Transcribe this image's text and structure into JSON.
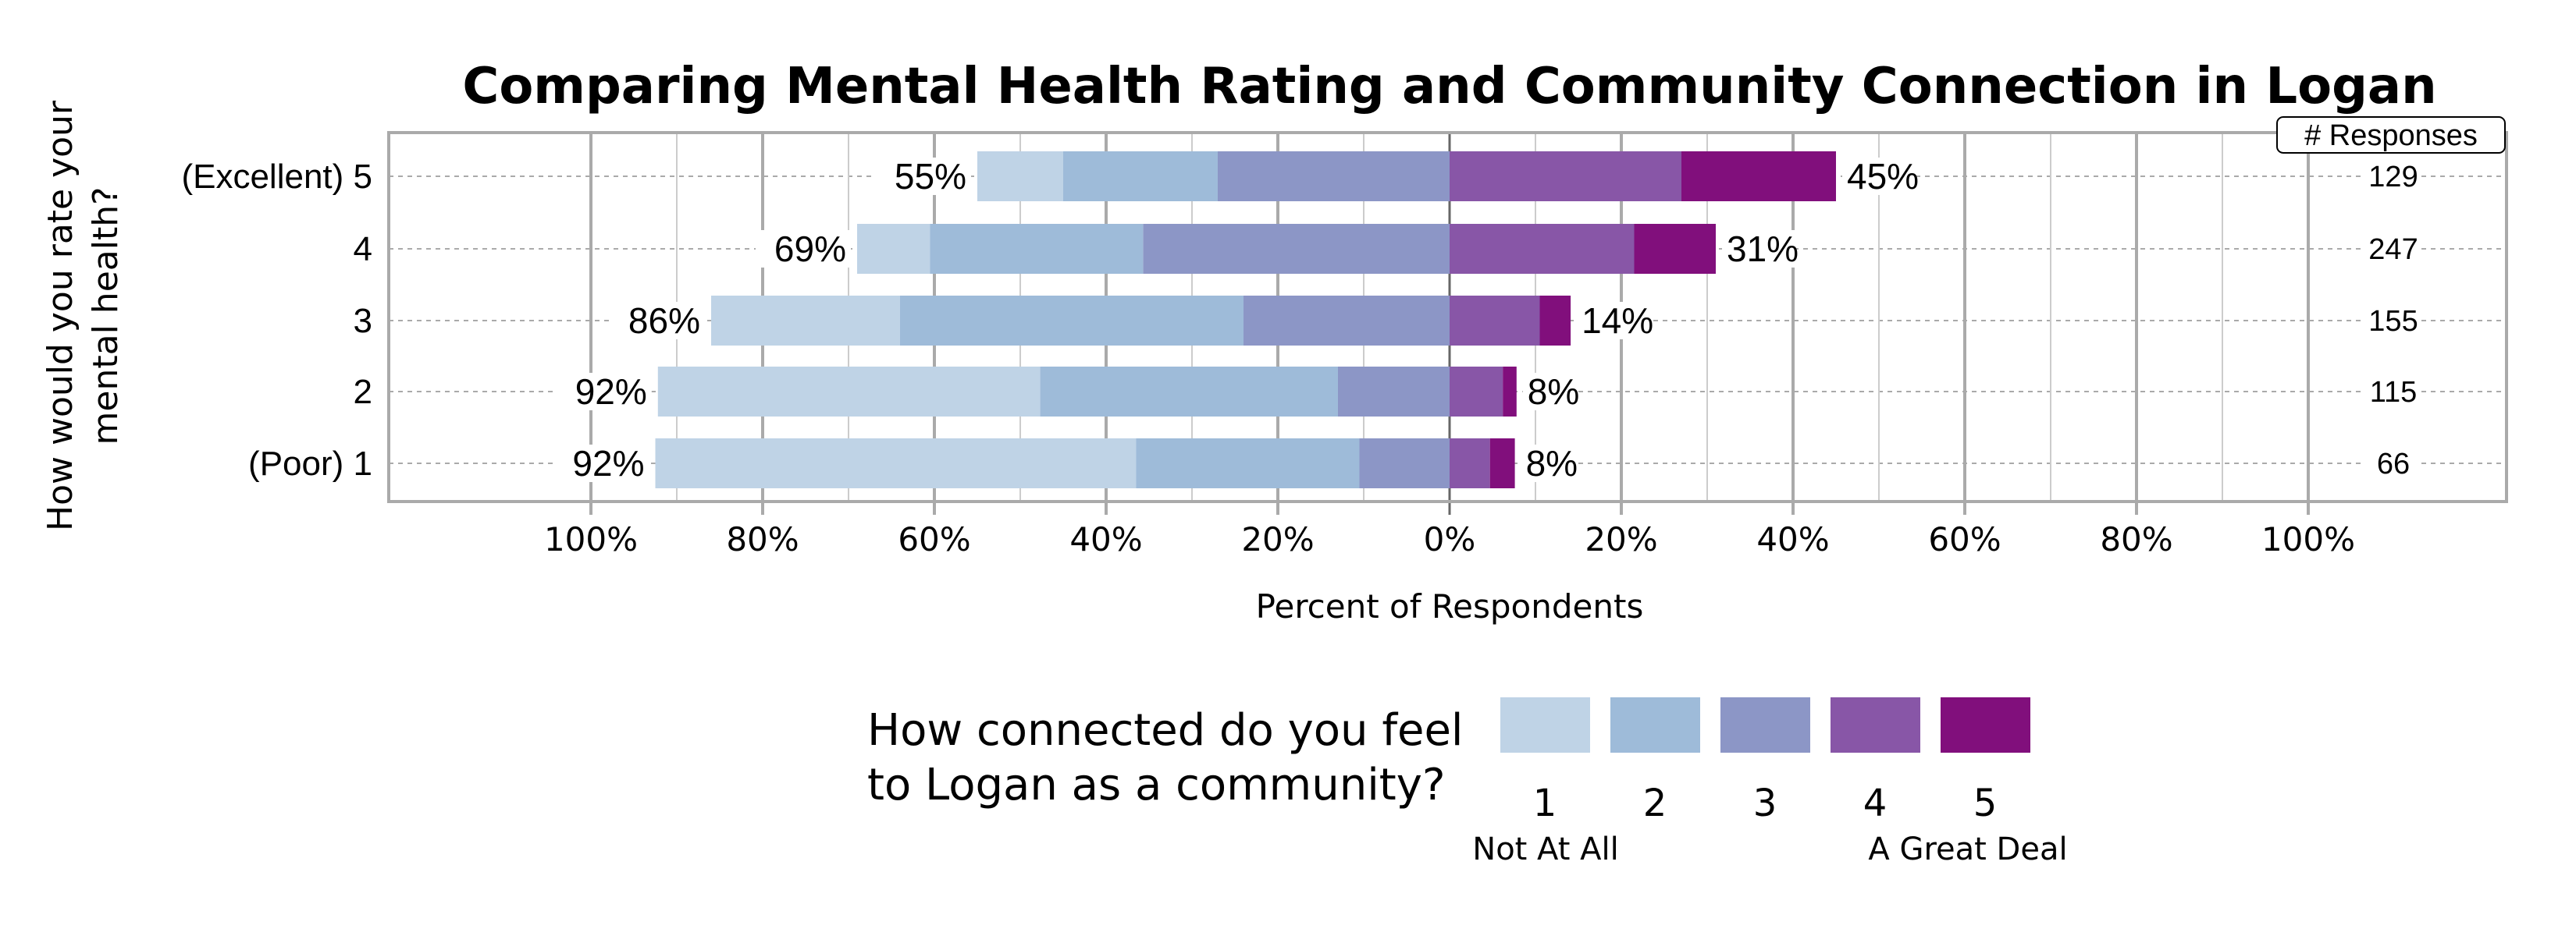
{
  "chart_data": {
    "type": "bar",
    "subtype": "diverging-stacked-horizontal",
    "title": "Comparing Mental Health Rating and Community Connection in Logan",
    "xlabel": "Percent of Respondents",
    "ylabel": "How would you rate your mental health?",
    "categories": [
      "(Excellent) 5",
      "4",
      "3",
      "2",
      "(Poor) 1"
    ],
    "x_ticks": [
      "100%",
      "80%",
      "60%",
      "40%",
      "20%",
      "0%",
      "20%",
      "40%",
      "60%",
      "80%",
      "100%"
    ],
    "xlim": [
      -100,
      100
    ],
    "grid": true,
    "legend": {
      "title": "How connected do you feel to Logan as a community?",
      "title_lines": [
        "How connected do you feel",
        "to Logan as a community?"
      ],
      "placement": "bottom",
      "low_label": "Not At All",
      "high_label": "A Great Deal"
    },
    "series": [
      {
        "name": "1",
        "color": "#bfd3e6",
        "side": "left",
        "values": [
          10,
          8.5,
          22,
          44.5,
          56
        ]
      },
      {
        "name": "2",
        "color": "#9ebbd9",
        "side": "left",
        "values": [
          18,
          24.8,
          40,
          34.7,
          26
        ]
      },
      {
        "name": "3",
        "color": "#8c96c6",
        "side": "left",
        "values": [
          27,
          35.7,
          24,
          13,
          10.5
        ]
      },
      {
        "name": "4",
        "color": "#8856a7",
        "side": "right",
        "values": [
          27,
          21.5,
          10.5,
          6.2,
          4.7
        ]
      },
      {
        "name": "5",
        "color": "#810f7c",
        "side": "right",
        "values": [
          18,
          9.5,
          3.6,
          1.6,
          2.9
        ]
      }
    ],
    "left_totals": [
      "55%",
      "69%",
      "86%",
      "92%",
      "92%"
    ],
    "right_totals": [
      "45%",
      "31%",
      "14%",
      "8%",
      "8%"
    ],
    "responses_header": "# Responses",
    "responses": [
      "129",
      "247",
      "155",
      "115",
      "66"
    ]
  }
}
